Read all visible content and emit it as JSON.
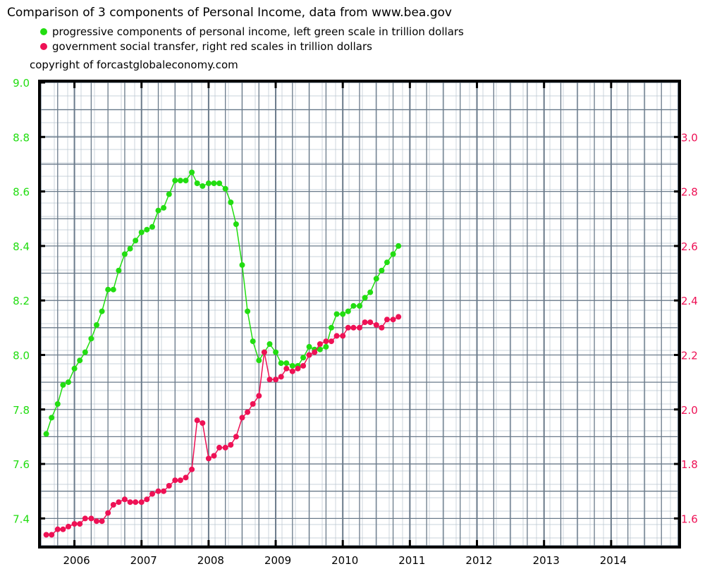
{
  "header": {
    "title": "Comparison of 3 components of Personal Income, data from www.bea.gov",
    "copyright": "copyright of forcastglobaleconomy.com"
  },
  "legend": {
    "items": [
      {
        "label": "progressive components of personal income, left green scale in trillion dollars",
        "color": "#22dd11"
      },
      {
        "label": "government social transfer, right red scales in trillion dollars",
        "color": "#ee1155"
      }
    ]
  },
  "colors": {
    "green": "#22dd11",
    "red": "#ee1155",
    "grid": "#6a7a8a",
    "grid_minor": "#b8c4cf",
    "frame": "#000000"
  },
  "chart_data": {
    "type": "line",
    "x_range": [
      2005.5,
      2015.0
    ],
    "x_ticks": [
      "2006",
      "2007",
      "2008",
      "2009",
      "2010",
      "2011",
      "2012",
      "2013",
      "2014"
    ],
    "x_tick_values": [
      2006,
      2007,
      2008,
      2009,
      2010,
      2011,
      2012,
      2013,
      2014
    ],
    "y_left": {
      "range": [
        7.3,
        9.0
      ],
      "ticks": [
        "7.4",
        "7.6",
        "7.8",
        "8.0",
        "8.2",
        "8.4",
        "8.6",
        "8.8",
        "9.0"
      ],
      "tick_values": [
        7.4,
        7.6,
        7.8,
        8.0,
        8.2,
        8.4,
        8.6,
        8.8,
        9.0
      ],
      "color": "#22dd11"
    },
    "y_right": {
      "range": [
        1.5,
        3.2
      ],
      "ticks": [
        "1.6",
        "1.8",
        "2.0",
        "2.2",
        "2.4",
        "2.6",
        "2.8",
        "3.0"
      ],
      "tick_values": [
        1.6,
        1.8,
        2.0,
        2.2,
        2.4,
        2.6,
        2.8,
        3.0
      ],
      "color": "#ee1155"
    },
    "grid": true,
    "series": [
      {
        "name": "progressive components of personal income, left green scale in trillion dollars",
        "axis": "left",
        "color": "#22dd11",
        "x": [
          2005.58,
          2005.66,
          2005.75,
          2005.83,
          2005.91,
          2006.0,
          2006.08,
          2006.16,
          2006.25,
          2006.33,
          2006.41,
          2006.5,
          2006.58,
          2006.66,
          2006.75,
          2006.83,
          2006.91,
          2007.0,
          2007.08,
          2007.16,
          2007.25,
          2007.33,
          2007.41,
          2007.5,
          2007.58,
          2007.66,
          2007.75,
          2007.83,
          2007.91,
          2008.0,
          2008.08,
          2008.16,
          2008.25,
          2008.33,
          2008.41,
          2008.5,
          2008.58,
          2008.66,
          2008.75,
          2008.83,
          2008.91,
          2009.0,
          2009.08,
          2009.16,
          2009.25,
          2009.33,
          2009.41,
          2009.5,
          2009.58,
          2009.66,
          2009.75,
          2009.83,
          2009.91,
          2010.0,
          2010.08,
          2010.16,
          2010.25,
          2010.33,
          2010.41,
          2010.5,
          2010.58,
          2010.66,
          2010.75,
          2010.83
        ],
        "y": [
          7.71,
          7.77,
          7.82,
          7.89,
          7.9,
          7.95,
          7.98,
          8.01,
          8.06,
          8.11,
          8.16,
          8.24,
          8.24,
          8.31,
          8.37,
          8.39,
          8.42,
          8.45,
          8.46,
          8.47,
          8.53,
          8.54,
          8.59,
          8.64,
          8.64,
          8.64,
          8.67,
          8.63,
          8.62,
          8.63,
          8.63,
          8.63,
          8.61,
          8.56,
          8.48,
          8.33,
          8.16,
          8.05,
          7.98,
          8.01,
          8.04,
          8.01,
          7.97,
          7.97,
          7.96,
          7.96,
          7.99,
          8.03,
          8.02,
          8.02,
          8.03,
          8.1,
          8.15,
          8.15,
          8.16,
          8.18,
          8.18,
          8.21,
          8.23,
          8.28,
          8.31,
          8.34,
          8.37,
          8.4
        ]
      },
      {
        "name": "government social transfer, right red scales in trillion dollars",
        "axis": "right",
        "color": "#ee1155",
        "x": [
          2005.58,
          2005.66,
          2005.75,
          2005.83,
          2005.91,
          2006.0,
          2006.08,
          2006.16,
          2006.25,
          2006.33,
          2006.41,
          2006.5,
          2006.58,
          2006.66,
          2006.75,
          2006.83,
          2006.91,
          2007.0,
          2007.08,
          2007.16,
          2007.25,
          2007.33,
          2007.41,
          2007.5,
          2007.58,
          2007.66,
          2007.75,
          2007.83,
          2007.91,
          2008.0,
          2008.08,
          2008.16,
          2008.25,
          2008.33,
          2008.41,
          2008.5,
          2008.58,
          2008.66,
          2008.75,
          2008.83,
          2008.91,
          2009.0,
          2009.08,
          2009.16,
          2009.25,
          2009.33,
          2009.41,
          2009.5,
          2009.58,
          2009.66,
          2009.75,
          2009.83,
          2009.91,
          2010.0,
          2010.08,
          2010.16,
          2010.25,
          2010.33,
          2010.41,
          2010.5,
          2010.58,
          2010.66,
          2010.75,
          2010.83
        ],
        "y": [
          1.54,
          1.54,
          1.56,
          1.56,
          1.57,
          1.58,
          1.58,
          1.6,
          1.6,
          1.59,
          1.59,
          1.62,
          1.65,
          1.66,
          1.67,
          1.66,
          1.66,
          1.66,
          1.67,
          1.69,
          1.7,
          1.7,
          1.72,
          1.74,
          1.74,
          1.75,
          1.78,
          1.96,
          1.95,
          1.82,
          1.83,
          1.86,
          1.86,
          1.87,
          1.9,
          1.97,
          1.99,
          2.02,
          2.05,
          2.21,
          2.11,
          2.11,
          2.12,
          2.15,
          2.14,
          2.15,
          2.16,
          2.2,
          2.21,
          2.24,
          2.25,
          2.25,
          2.27,
          2.27,
          2.3,
          2.3,
          2.3,
          2.32,
          2.32,
          2.31,
          2.3,
          2.33,
          2.33,
          2.34
        ]
      }
    ]
  }
}
